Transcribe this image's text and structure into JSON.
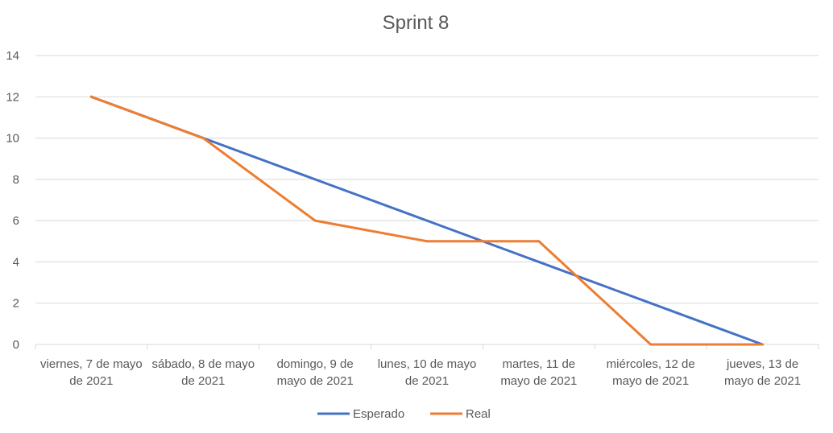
{
  "chart_data": {
    "type": "line",
    "title": "Sprint 8",
    "xlabel": "",
    "ylabel": "",
    "categories": [
      [
        "viernes, 7 de mayo",
        "de 2021"
      ],
      [
        "sábado, 8 de mayo",
        "de 2021"
      ],
      [
        "domingo, 9 de",
        "mayo de 2021"
      ],
      [
        "lunes, 10 de mayo",
        "de 2021"
      ],
      [
        "martes, 11 de",
        "mayo de 2021"
      ],
      [
        "miércoles, 12 de",
        "mayo de 2021"
      ],
      [
        "jueves, 13 de",
        "mayo de 2021"
      ]
    ],
    "ylim": [
      0,
      14
    ],
    "yticks": [
      0,
      2,
      4,
      6,
      8,
      10,
      12,
      14
    ],
    "grid": true,
    "legend_position": "bottom",
    "series": [
      {
        "name": "Esperado",
        "color": "#4472C4",
        "values": [
          12,
          10,
          8,
          6,
          4,
          2,
          0
        ]
      },
      {
        "name": "Real",
        "color": "#ED7D31",
        "values": [
          12,
          10,
          6,
          5,
          5,
          0,
          0
        ]
      }
    ]
  }
}
